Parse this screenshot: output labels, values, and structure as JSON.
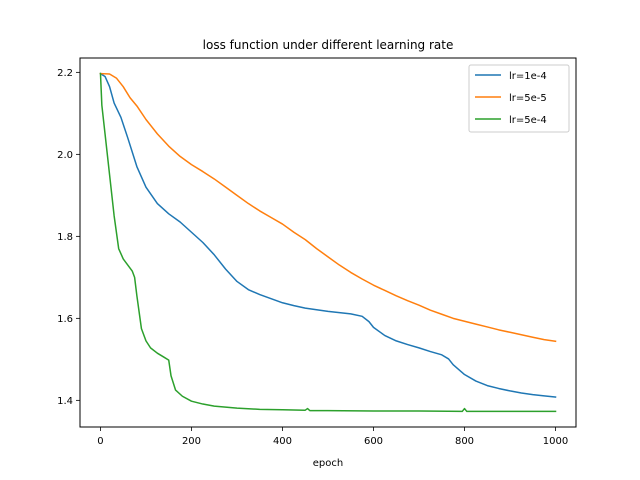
{
  "chart_data": {
    "type": "line",
    "title": "loss function under different learning rate",
    "xlabel": "epoch",
    "ylabel": "",
    "xlim": [
      -45,
      1045
    ],
    "ylim": [
      1.335,
      2.235
    ],
    "xticks": [
      0,
      200,
      400,
      600,
      800,
      1000
    ],
    "yticks": [
      1.4,
      1.6,
      1.8,
      2.0,
      2.2
    ],
    "x_tick_labels": [
      "0",
      "200",
      "400",
      "600",
      "800",
      "1000"
    ],
    "y_tick_labels": [
      "1.4",
      "1.6",
      "1.8",
      "2.0",
      "2.2"
    ],
    "grid": false,
    "legend_position": "top-right",
    "series": [
      {
        "name": "lr=1e-4",
        "color": "#1f77b4",
        "points": [
          [
            0,
            2.197
          ],
          [
            10,
            2.19
          ],
          [
            20,
            2.165
          ],
          [
            30,
            2.125
          ],
          [
            45,
            2.09
          ],
          [
            60,
            2.04
          ],
          [
            80,
            1.97
          ],
          [
            100,
            1.92
          ],
          [
            125,
            1.88
          ],
          [
            150,
            1.855
          ],
          [
            175,
            1.835
          ],
          [
            200,
            1.81
          ],
          [
            225,
            1.785
          ],
          [
            250,
            1.755
          ],
          [
            275,
            1.72
          ],
          [
            300,
            1.69
          ],
          [
            325,
            1.67
          ],
          [
            350,
            1.658
          ],
          [
            375,
            1.648
          ],
          [
            400,
            1.638
          ],
          [
            425,
            1.631
          ],
          [
            450,
            1.625
          ],
          [
            475,
            1.621
          ],
          [
            500,
            1.617
          ],
          [
            525,
            1.614
          ],
          [
            550,
            1.611
          ],
          [
            575,
            1.605
          ],
          [
            590,
            1.592
          ],
          [
            600,
            1.578
          ],
          [
            625,
            1.558
          ],
          [
            650,
            1.545
          ],
          [
            675,
            1.536
          ],
          [
            700,
            1.528
          ],
          [
            725,
            1.519
          ],
          [
            750,
            1.511
          ],
          [
            765,
            1.501
          ],
          [
            775,
            1.487
          ],
          [
            800,
            1.463
          ],
          [
            825,
            1.447
          ],
          [
            850,
            1.436
          ],
          [
            875,
            1.429
          ],
          [
            900,
            1.423
          ],
          [
            925,
            1.418
          ],
          [
            950,
            1.414
          ],
          [
            975,
            1.411
          ],
          [
            1000,
            1.408
          ]
        ]
      },
      {
        "name": "lr=5e-5",
        "color": "#ff7f0e",
        "points": [
          [
            0,
            2.197
          ],
          [
            20,
            2.196
          ],
          [
            35,
            2.186
          ],
          [
            50,
            2.165
          ],
          [
            65,
            2.138
          ],
          [
            80,
            2.118
          ],
          [
            100,
            2.085
          ],
          [
            125,
            2.05
          ],
          [
            150,
            2.02
          ],
          [
            175,
            1.995
          ],
          [
            200,
            1.975
          ],
          [
            225,
            1.958
          ],
          [
            250,
            1.94
          ],
          [
            275,
            1.92
          ],
          [
            300,
            1.9
          ],
          [
            325,
            1.88
          ],
          [
            350,
            1.862
          ],
          [
            375,
            1.846
          ],
          [
            400,
            1.83
          ],
          [
            425,
            1.81
          ],
          [
            450,
            1.792
          ],
          [
            475,
            1.77
          ],
          [
            500,
            1.75
          ],
          [
            525,
            1.73
          ],
          [
            550,
            1.712
          ],
          [
            575,
            1.696
          ],
          [
            600,
            1.681
          ],
          [
            625,
            1.668
          ],
          [
            650,
            1.655
          ],
          [
            675,
            1.643
          ],
          [
            700,
            1.632
          ],
          [
            725,
            1.62
          ],
          [
            750,
            1.61
          ],
          [
            775,
            1.6
          ],
          [
            800,
            1.593
          ],
          [
            825,
            1.586
          ],
          [
            850,
            1.579
          ],
          [
            875,
            1.572
          ],
          [
            900,
            1.566
          ],
          [
            925,
            1.56
          ],
          [
            950,
            1.554
          ],
          [
            975,
            1.548
          ],
          [
            1000,
            1.544
          ]
        ]
      },
      {
        "name": "lr=5e-4",
        "color": "#2ca02c",
        "points": [
          [
            0,
            2.197
          ],
          [
            3,
            2.12
          ],
          [
            10,
            2.05
          ],
          [
            20,
            1.95
          ],
          [
            30,
            1.85
          ],
          [
            40,
            1.77
          ],
          [
            50,
            1.745
          ],
          [
            60,
            1.73
          ],
          [
            70,
            1.715
          ],
          [
            75,
            1.7
          ],
          [
            80,
            1.655
          ],
          [
            90,
            1.575
          ],
          [
            100,
            1.545
          ],
          [
            110,
            1.528
          ],
          [
            125,
            1.515
          ],
          [
            140,
            1.505
          ],
          [
            150,
            1.498
          ],
          [
            155,
            1.46
          ],
          [
            165,
            1.425
          ],
          [
            180,
            1.41
          ],
          [
            200,
            1.398
          ],
          [
            225,
            1.391
          ],
          [
            250,
            1.386
          ],
          [
            300,
            1.381
          ],
          [
            350,
            1.378
          ],
          [
            400,
            1.377
          ],
          [
            450,
            1.376
          ],
          [
            455,
            1.38
          ],
          [
            460,
            1.375
          ],
          [
            500,
            1.375
          ],
          [
            600,
            1.374
          ],
          [
            700,
            1.374
          ],
          [
            795,
            1.373
          ],
          [
            800,
            1.38
          ],
          [
            805,
            1.373
          ],
          [
            900,
            1.373
          ],
          [
            1000,
            1.373
          ]
        ]
      }
    ]
  }
}
